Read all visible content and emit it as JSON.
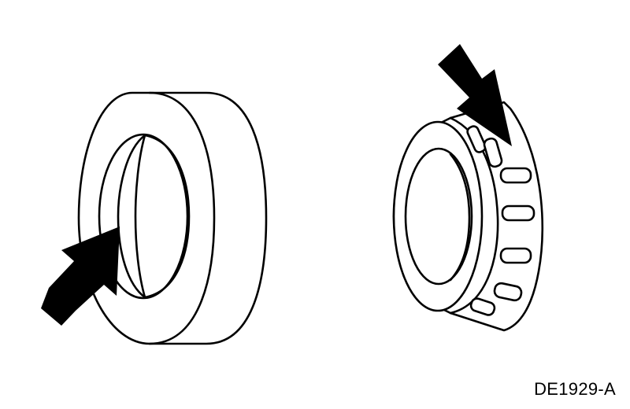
{
  "figure": {
    "id_label": "DE1929-A",
    "ink_color": "#000000",
    "background": "#ffffff",
    "items": [
      {
        "name": "bearing-cup",
        "indicator": "arrow-icon"
      },
      {
        "name": "bearing-cone-roller-assembly",
        "indicator": "arrow-icon",
        "roller_count_visible": 7
      }
    ]
  }
}
